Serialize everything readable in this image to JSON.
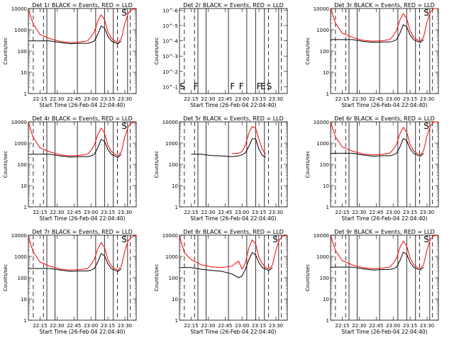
{
  "chart_data": [
    {
      "type": "line",
      "title": "Det 1r BLACK = Events, RED = LLD",
      "ylabel": "Counts/sec",
      "xlabel": "Start Time (26-Feb-04 22:04:40)",
      "x_tick_labels": [
        "22:15",
        "22:30",
        "22:45",
        "23:00",
        "23:15",
        "23:30"
      ],
      "y_tick_labels": [
        "1",
        "10",
        "100",
        "1000",
        "10000"
      ],
      "yscale": "log",
      "ylim": [
        1,
        10000
      ],
      "x_tick_times": [
        22.25,
        22.5,
        22.75,
        23.0,
        23.25,
        23.5
      ],
      "x_range": [
        22.078,
        23.667
      ],
      "profile": "A",
      "scale": 1.0,
      "flags": [
        {
          "label": "S",
          "t": 23.49
        }
      ],
      "events": {
        "dashed": [
          22.15,
          22.3,
          23.39,
          23.58
        ],
        "solid": [
          22.35,
          22.47,
          22.8,
          23.07,
          23.2,
          23.33,
          23.54
        ]
      },
      "series": [
        {
          "name": "BLACK = Events",
          "color": "#000000"
        },
        {
          "name": "RED = LLD",
          "color": "#ff0000"
        }
      ]
    },
    {
      "type": "line",
      "title": "Det 2r BLACK = Events, RED = LLD",
      "ylabel": "Counts/sec",
      "xlabel": "Start Time (26-Feb-04 22:04:40)",
      "x_tick_labels": [
        "22:15",
        "22:30",
        "22:45",
        "23:00",
        "23:15",
        "23:30"
      ],
      "y_tick_labels": [
        "10^-1",
        "10^-2",
        "10^-3",
        "10^-4",
        "10^-5",
        "10^-6"
      ],
      "yscale": "log",
      "ylim": [
        1e-06,
        1
      ],
      "x_tick_times": [
        22.25,
        22.5,
        22.75,
        23.0,
        23.25,
        23.5
      ],
      "x_range": [
        22.078,
        23.667
      ],
      "profile": "none",
      "scale": 1.0,
      "flags": [
        {
          "label": "S",
          "t": 22.12
        },
        {
          "label": "F",
          "t": 22.32
        },
        {
          "label": "F",
          "t": 22.86
        },
        {
          "label": "F",
          "t": 22.99
        },
        {
          "label": "F",
          "t": 23.25
        },
        {
          "label": "E",
          "t": 23.31
        },
        {
          "label": "S",
          "t": 23.4
        }
      ],
      "events": {
        "dashed": [
          22.15,
          22.3,
          23.39,
          23.58
        ],
        "solid": [
          22.35,
          22.47,
          22.8,
          23.07,
          23.2,
          23.33,
          23.54
        ]
      },
      "series": []
    },
    {
      "type": "line",
      "title": "Det 3r BLACK = Events, RED = LLD",
      "ylabel": "Counts/sec",
      "xlabel": "Start Time (26-Feb-04 22:04:40)",
      "x_tick_labels": [
        "22:15",
        "22:30",
        "22:45",
        "23:00",
        "23:15",
        "23:30"
      ],
      "y_tick_labels": [
        "1",
        "10",
        "100",
        "1000",
        "10000"
      ],
      "yscale": "log",
      "ylim": [
        1,
        10000
      ],
      "x_tick_times": [
        22.25,
        22.5,
        22.75,
        23.0,
        23.25,
        23.5
      ],
      "x_range": [
        22.078,
        23.667
      ],
      "profile": "A",
      "scale": 1.15,
      "flags": [
        {
          "label": "S",
          "t": 23.49
        }
      ],
      "events": {
        "dashed": [
          22.15,
          22.3,
          23.39,
          23.58
        ],
        "solid": [
          22.35,
          22.47,
          22.8,
          23.07,
          23.2,
          23.33,
          23.54
        ]
      },
      "series": [
        {
          "name": "BLACK = Events",
          "color": "#000000"
        },
        {
          "name": "RED = LLD",
          "color": "#ff0000"
        }
      ]
    },
    {
      "type": "line",
      "title": "Det 4r BLACK = Events, RED = LLD",
      "ylabel": "Counts/sec",
      "xlabel": "Start Time (26-Feb-04 22:04:40)",
      "x_tick_labels": [
        "22:15",
        "22:30",
        "22:45",
        "23:00",
        "23:15",
        "23:30"
      ],
      "y_tick_labels": [
        "1",
        "10",
        "100",
        "1000",
        "10000"
      ],
      "yscale": "log",
      "ylim": [
        1,
        10000
      ],
      "x_tick_times": [
        22.25,
        22.5,
        22.75,
        23.0,
        23.25,
        23.5
      ],
      "x_range": [
        22.078,
        23.667
      ],
      "profile": "A",
      "scale": 1.0,
      "flags": [
        {
          "label": "S",
          "t": 23.49
        }
      ],
      "events": {
        "dashed": [
          22.15,
          22.3,
          23.39,
          23.58
        ],
        "solid": [
          22.35,
          22.47,
          22.8,
          23.07,
          23.2,
          23.33,
          23.54
        ]
      },
      "series": [
        {
          "name": "BLACK = Events",
          "color": "#000000"
        },
        {
          "name": "RED = LLD",
          "color": "#ff0000"
        }
      ]
    },
    {
      "type": "line",
      "title": "Det 5r BLACK = Events, RED = LLD",
      "ylabel": "Counts/sec",
      "xlabel": "Start Time (26-Feb-04 22:04:40)",
      "x_tick_labels": [
        "22:15",
        "22:30",
        "22:45",
        "23:00",
        "23:15",
        "23:30"
      ],
      "y_tick_labels": [
        "1",
        "10",
        "100",
        "1000",
        "10000"
      ],
      "yscale": "log",
      "ylim": [
        1,
        10000
      ],
      "x_tick_times": [
        22.25,
        22.5,
        22.75,
        23.0,
        23.25,
        23.5
      ],
      "x_range": [
        22.078,
        23.667
      ],
      "profile": "B",
      "scale": 1.0,
      "flags": [],
      "events": {
        "dashed": [
          22.15,
          22.3,
          23.39,
          23.58
        ],
        "solid": [
          22.35,
          22.47,
          22.8,
          23.07,
          23.2,
          23.33,
          23.54
        ]
      },
      "series": [
        {
          "name": "BLACK = Events",
          "color": "#000000"
        },
        {
          "name": "RED = LLD",
          "color": "#ff0000"
        }
      ]
    },
    {
      "type": "line",
      "title": "Det 6r BLACK = Events, RED = LLD",
      "ylabel": "Counts/sec",
      "xlabel": "Start Time (26-Feb-04 22:04:40)",
      "x_tick_labels": [
        "22:15",
        "22:30",
        "22:45",
        "23:00",
        "23:15",
        "23:30"
      ],
      "y_tick_labels": [
        "1",
        "10",
        "100",
        "1000",
        "10000"
      ],
      "yscale": "log",
      "ylim": [
        1,
        10000
      ],
      "x_tick_times": [
        22.25,
        22.5,
        22.75,
        23.0,
        23.25,
        23.5
      ],
      "x_range": [
        22.078,
        23.667
      ],
      "profile": "A",
      "scale": 1.1,
      "flags": [
        {
          "label": "S",
          "t": 23.49
        }
      ],
      "events": {
        "dashed": [
          22.15,
          22.3,
          23.39,
          23.58
        ],
        "solid": [
          22.35,
          22.47,
          22.8,
          23.07,
          23.2,
          23.33,
          23.54
        ]
      },
      "series": [
        {
          "name": "BLACK = Events",
          "color": "#000000"
        },
        {
          "name": "RED = LLD",
          "color": "#ff0000"
        }
      ]
    },
    {
      "type": "line",
      "title": "Det 7r BLACK = Events, RED = LLD",
      "ylabel": "Counts/sec",
      "xlabel": "Start Time (26-Feb-04 22:04:40)",
      "x_tick_labels": [
        "22:15",
        "22:30",
        "22:45",
        "23:00",
        "23:15",
        "23:30"
      ],
      "y_tick_labels": [
        "1",
        "10",
        "100",
        "1000",
        "10000"
      ],
      "yscale": "log",
      "ylim": [
        1,
        10000
      ],
      "x_tick_times": [
        22.25,
        22.5,
        22.75,
        23.0,
        23.25,
        23.5
      ],
      "x_range": [
        22.078,
        23.667
      ],
      "profile": "A",
      "scale": 0.9,
      "flags": [
        {
          "label": "S",
          "t": 23.49
        }
      ],
      "events": {
        "dashed": [
          22.15,
          22.3,
          23.39,
          23.58
        ],
        "solid": [
          22.35,
          22.47,
          22.8,
          23.07,
          23.2,
          23.33,
          23.54
        ]
      },
      "series": [
        {
          "name": "BLACK = Events",
          "color": "#000000"
        },
        {
          "name": "RED = LLD",
          "color": "#ff0000"
        }
      ]
    },
    {
      "type": "line",
      "title": "Det 8r BLACK = Events, RED = LLD",
      "ylabel": "Counts/sec",
      "xlabel": "Start Time (26-Feb-04 22:04:40)",
      "x_tick_labels": [
        "22:15",
        "22:30",
        "22:45",
        "23:00",
        "23:15",
        "23:30"
      ],
      "y_tick_labels": [
        "1",
        "10",
        "100",
        "1000",
        "10000"
      ],
      "yscale": "log",
      "ylim": [
        1,
        10000
      ],
      "x_tick_times": [
        22.25,
        22.5,
        22.75,
        23.0,
        23.25,
        23.5
      ],
      "x_range": [
        22.078,
        23.667
      ],
      "profile": "C",
      "scale": 1.0,
      "flags": [
        {
          "label": "S",
          "t": 23.49
        }
      ],
      "events": {
        "dashed": [
          22.15,
          22.3,
          23.39,
          23.58
        ],
        "solid": [
          22.35,
          22.47,
          22.8,
          23.07,
          23.2,
          23.33,
          23.54
        ]
      },
      "series": [
        {
          "name": "BLACK = Events",
          "color": "#000000"
        },
        {
          "name": "RED = LLD",
          "color": "#ff0000"
        }
      ]
    },
    {
      "type": "line",
      "title": "Det 9r BLACK = Events, RED = LLD",
      "ylabel": "Counts/sec",
      "xlabel": "Start Time (26-Feb-04 22:04:40)",
      "x_tick_labels": [
        "22:15",
        "22:30",
        "22:45",
        "23:00",
        "23:15",
        "23:30"
      ],
      "y_tick_labels": [
        "1",
        "10",
        "100",
        "1000",
        "10000"
      ],
      "yscale": "log",
      "ylim": [
        1,
        10000
      ],
      "x_tick_times": [
        22.25,
        22.5,
        22.75,
        23.0,
        23.25,
        23.5
      ],
      "x_range": [
        22.078,
        23.667
      ],
      "profile": "A",
      "scale": 1.05,
      "flags": [
        {
          "label": "S",
          "t": 23.49
        }
      ],
      "events": {
        "dashed": [
          22.15,
          22.3,
          23.39,
          23.58
        ],
        "solid": [
          22.35,
          22.47,
          22.8,
          23.07,
          23.2,
          23.33,
          23.54
        ]
      },
      "series": [
        {
          "name": "BLACK = Events",
          "color": "#000000"
        },
        {
          "name": "RED = LLD",
          "color": "#ff0000"
        }
      ]
    }
  ],
  "profiles": {
    "A": {
      "t": [
        22.078,
        22.15,
        22.25,
        22.4,
        22.55,
        22.7,
        22.85,
        22.95,
        23.0,
        23.05,
        23.1,
        23.15,
        23.2,
        23.25,
        23.3,
        23.35,
        23.4,
        23.45,
        23.5,
        23.55,
        23.6,
        23.667
      ],
      "red": [
        9000,
        1800,
        600,
        380,
        280,
        250,
        270,
        300,
        450,
        800,
        2500,
        5000,
        3000,
        800,
        400,
        300,
        250,
        400,
        2000,
        6000,
        9000,
        12000
      ],
      "black": [
        300,
        300,
        300,
        300,
        250,
        220,
        230,
        230,
        250,
        300,
        600,
        1500,
        1200,
        500,
        300,
        250,
        220,
        300,
        null,
        null,
        null,
        null
      ]
    },
    "B": {
      "t": [
        22.078,
        22.15,
        22.25,
        22.4,
        22.55,
        22.7,
        22.85,
        22.95,
        23.0,
        23.05,
        23.1,
        23.15,
        23.2,
        23.25,
        23.3,
        23.35,
        23.4,
        23.45,
        23.5,
        23.55,
        23.6,
        23.667
      ],
      "red": [
        null,
        null,
        null,
        null,
        null,
        null,
        320,
        330,
        400,
        800,
        3000,
        6000,
        5000,
        1500,
        500,
        300,
        null,
        null,
        null,
        null,
        null,
        null
      ],
      "black": [
        null,
        null,
        300,
        300,
        260,
        250,
        230,
        250,
        280,
        350,
        700,
        1600,
        1600,
        500,
        260,
        220,
        null,
        null,
        null,
        null,
        null,
        null
      ]
    },
    "C": {
      "t": [
        22.078,
        22.15,
        22.25,
        22.4,
        22.55,
        22.7,
        22.85,
        22.95,
        23.0,
        23.05,
        23.1,
        23.15,
        23.2,
        23.25,
        23.3,
        23.35,
        23.4,
        23.45,
        23.5,
        23.55,
        23.6,
        23.667
      ],
      "red": [
        9000,
        1500,
        700,
        400,
        320,
        300,
        350,
        600,
        250,
        500,
        2500,
        6000,
        4000,
        900,
        450,
        300,
        260,
        400,
        2000,
        6000,
        9000,
        12000
      ],
      "black": [
        300,
        300,
        300,
        250,
        220,
        200,
        150,
        100,
        120,
        250,
        700,
        1500,
        1200,
        500,
        300,
        250,
        220,
        300,
        null,
        null,
        null,
        null
      ]
    },
    "none": {
      "t": [],
      "red": [],
      "black": []
    }
  }
}
